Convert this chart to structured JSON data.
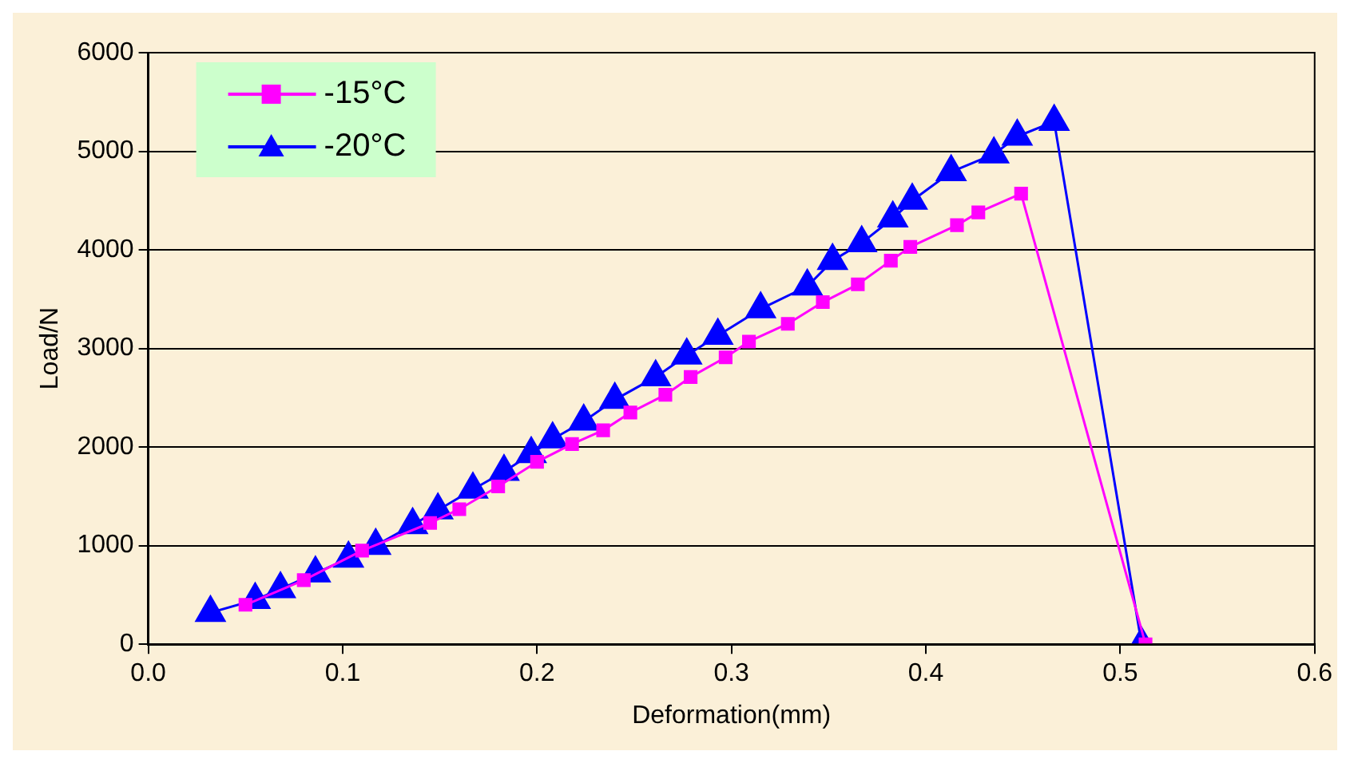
{
  "chart_data": {
    "type": "line",
    "xlabel": "Deformation(mm)",
    "ylabel": "Load/N",
    "xlim": [
      0,
      0.6
    ],
    "xticks": [
      {
        "value": 0,
        "label": "0.0"
      },
      {
        "value": 0.1,
        "label": "0.1"
      },
      {
        "value": 0.2,
        "label": "0.2"
      },
      {
        "value": 0.3,
        "label": "0.3"
      },
      {
        "value": 0.4,
        "label": "0.4"
      },
      {
        "value": 0.5,
        "label": "0.5"
      },
      {
        "value": 0.6,
        "label": "0.6"
      }
    ],
    "ylim": [
      0,
      6000
    ],
    "yticks": [
      0,
      1000,
      2000,
      3000,
      4000,
      5000,
      6000
    ],
    "grid": "y",
    "legend": "top left",
    "line_style": "solid",
    "series": [
      {
        "name": "-15°C",
        "color": "#ff00ff",
        "marker": "square",
        "x": [
          0.05,
          0.08,
          0.11,
          0.145,
          0.16,
          0.18,
          0.2,
          0.218,
          0.234,
          0.248,
          0.266,
          0.279,
          0.297,
          0.309,
          0.329,
          0.347,
          0.365,
          0.382,
          0.392,
          0.416,
          0.427,
          0.449,
          0.513
        ],
        "values": [
          400,
          650,
          950,
          1230,
          1370,
          1600,
          1850,
          2030,
          2170,
          2350,
          2530,
          2710,
          2910,
          3070,
          3250,
          3470,
          3650,
          3890,
          4030,
          4250,
          4380,
          4570,
          0
        ]
      },
      {
        "name": "-20°C",
        "color": "#0000ff",
        "marker": "triangle",
        "x": [
          0.032,
          0.055,
          0.068,
          0.086,
          0.103,
          0.117,
          0.136,
          0.149,
          0.167,
          0.183,
          0.197,
          0.208,
          0.224,
          0.24,
          0.261,
          0.277,
          0.293,
          0.315,
          0.339,
          0.352,
          0.367,
          0.383,
          0.393,
          0.413,
          0.435,
          0.447,
          0.466,
          0.511
        ],
        "values": [
          320,
          450,
          560,
          720,
          870,
          1000,
          1210,
          1360,
          1570,
          1750,
          1930,
          2080,
          2260,
          2480,
          2710,
          2930,
          3130,
          3400,
          3630,
          3890,
          4070,
          4320,
          4500,
          4790,
          4970,
          5150,
          5300,
          0
        ]
      }
    ]
  }
}
